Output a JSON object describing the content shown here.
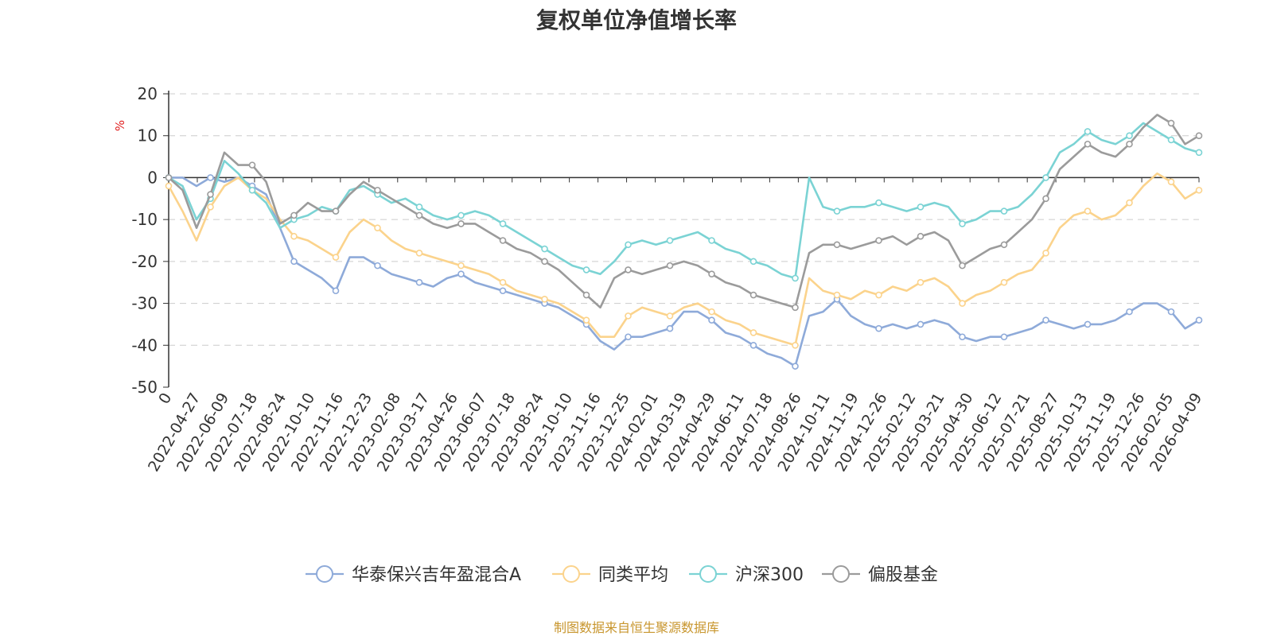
{
  "chart_data": {
    "type": "line",
    "title": "复权单位净值增长率",
    "ylabel": "%",
    "ylim": [
      -50,
      20
    ],
    "yticks": [
      20,
      10,
      0,
      -10,
      -20,
      -30,
      -40,
      -50
    ],
    "x_ticks": [
      "0",
      "2022-04-27",
      "2022-06-09",
      "2022-07-18",
      "2022-08-24",
      "2022-10-10",
      "2022-11-16",
      "2022-12-23",
      "2023-02-08",
      "2023-03-17",
      "2023-04-26",
      "2023-06-07",
      "2023-07-18",
      "2023-08-24",
      "2023-10-10",
      "2023-11-16",
      "2023-12-25",
      "2024-02-01",
      "2024-03-19",
      "2024-04-29",
      "2024-06-11",
      "2024-07-18",
      "2024-08-26",
      "2024-10-11",
      "2024-11-19",
      "2024-12-26",
      "2025-02-12",
      "2025-03-21",
      "2025-04-30",
      "2025-06-12",
      "2025-07-21",
      "2025-08-27",
      "2025-10-13",
      "2025-11-19",
      "2025-12-26",
      "2026-02-05",
      "2026-04-09"
    ],
    "legend_position": "bottom",
    "series": [
      {
        "name": "华泰保兴吉年盈混合A",
        "color": "#8eaad9",
        "values": [
          0,
          0,
          -2,
          0,
          -1,
          0,
          -2,
          -4,
          -12,
          -20,
          -22,
          -24,
          -27,
          -19,
          -19,
          -21,
          -23,
          -24,
          -25,
          -26,
          -24,
          -23,
          -25,
          -26,
          -27,
          -28,
          -29,
          -30,
          -31,
          -33,
          -35,
          -39,
          -41,
          -38,
          -38,
          -37,
          -36,
          -32,
          -32,
          -34,
          -37,
          -38,
          -40,
          -42,
          -43,
          -45,
          -33,
          -32,
          -29,
          -33,
          -35,
          -36,
          -35,
          -36,
          -35,
          -34,
          -35,
          -38,
          -39,
          -38,
          -38,
          -37,
          -36,
          -34,
          -35,
          -36,
          -35,
          -35,
          -34,
          -32,
          -30,
          -30,
          -32,
          -36,
          -34
        ]
      },
      {
        "name": "同类平均",
        "color": "#fbd38c",
        "values": [
          -2,
          -8,
          -15,
          -7,
          -2,
          0,
          -3,
          -5,
          -10,
          -14,
          -15,
          -17,
          -19,
          -13,
          -10,
          -12,
          -15,
          -17,
          -18,
          -19,
          -20,
          -21,
          -22,
          -23,
          -25,
          -27,
          -28,
          -29,
          -30,
          -32,
          -34,
          -38,
          -38,
          -33,
          -31,
          -32,
          -33,
          -31,
          -30,
          -32,
          -34,
          -35,
          -37,
          -38,
          -39,
          -40,
          -24,
          -27,
          -28,
          -29,
          -27,
          -28,
          -26,
          -27,
          -25,
          -24,
          -26,
          -30,
          -28,
          -27,
          -25,
          -23,
          -22,
          -18,
          -12,
          -9,
          -8,
          -10,
          -9,
          -6,
          -2,
          1,
          -1,
          -5,
          -3
        ]
      },
      {
        "name": "沪深300",
        "color": "#7bd3d4",
        "values": [
          0,
          -2,
          -10,
          -5,
          4,
          1,
          -3,
          -6,
          -12,
          -10,
          -9,
          -7,
          -8,
          -3,
          -2,
          -4,
          -6,
          -5,
          -7,
          -9,
          -10,
          -9,
          -8,
          -9,
          -11,
          -13,
          -15,
          -17,
          -19,
          -21,
          -22,
          -23,
          -20,
          -16,
          -15,
          -16,
          -15,
          -14,
          -13,
          -15,
          -17,
          -18,
          -20,
          -21,
          -23,
          -24,
          0,
          -7,
          -8,
          -7,
          -7,
          -6,
          -7,
          -8,
          -7,
          -6,
          -7,
          -11,
          -10,
          -8,
          -8,
          -7,
          -4,
          0,
          6,
          8,
          11,
          9,
          8,
          10,
          13,
          11,
          9,
          7,
          6
        ]
      },
      {
        "name": "偏股基金",
        "color": "#9b9b9b",
        "values": [
          0,
          -3,
          -12,
          -4,
          6,
          3,
          3,
          -1,
          -11,
          -9,
          -6,
          -8,
          -8,
          -4,
          -1,
          -3,
          -5,
          -7,
          -9,
          -11,
          -12,
          -11,
          -11,
          -13,
          -15,
          -17,
          -18,
          -20,
          -22,
          -25,
          -28,
          -31,
          -24,
          -22,
          -23,
          -22,
          -21,
          -20,
          -21,
          -23,
          -25,
          -26,
          -28,
          -29,
          -30,
          -31,
          -18,
          -16,
          -16,
          -17,
          -16,
          -15,
          -14,
          -16,
          -14,
          -13,
          -15,
          -21,
          -19,
          -17,
          -16,
          -13,
          -10,
          -5,
          2,
          5,
          8,
          6,
          5,
          8,
          12,
          15,
          13,
          8,
          10
        ]
      }
    ]
  },
  "footer": {
    "source": "制图数据来自恒生聚源数据库"
  }
}
